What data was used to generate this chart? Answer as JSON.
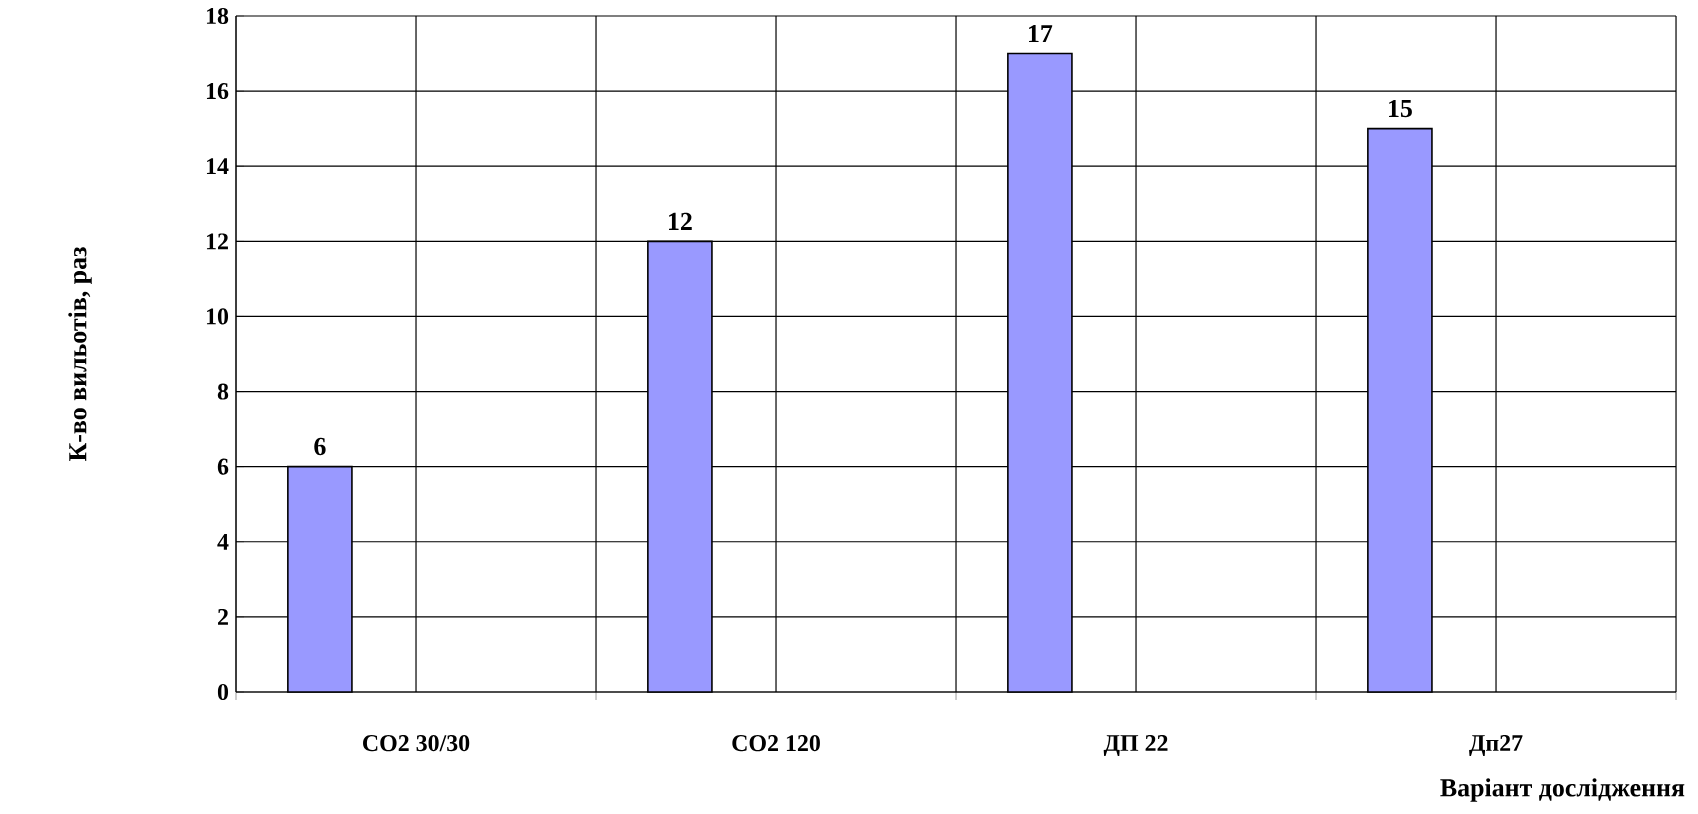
{
  "chart_data": {
    "type": "bar",
    "ylabel": "К-во вильотів, раз",
    "xlabel": "Варіант дослідження",
    "categories": [
      "CO2 30/30",
      "CO2 120",
      "ДП 22",
      "Дп27"
    ],
    "values": [
      6,
      12,
      17,
      15
    ],
    "color": "#9999ff",
    "ylim": [
      0,
      18
    ],
    "yticks": [
      0,
      2,
      4,
      6,
      8,
      10,
      12,
      14,
      16,
      18
    ],
    "grid": true,
    "data_labels": true
  }
}
